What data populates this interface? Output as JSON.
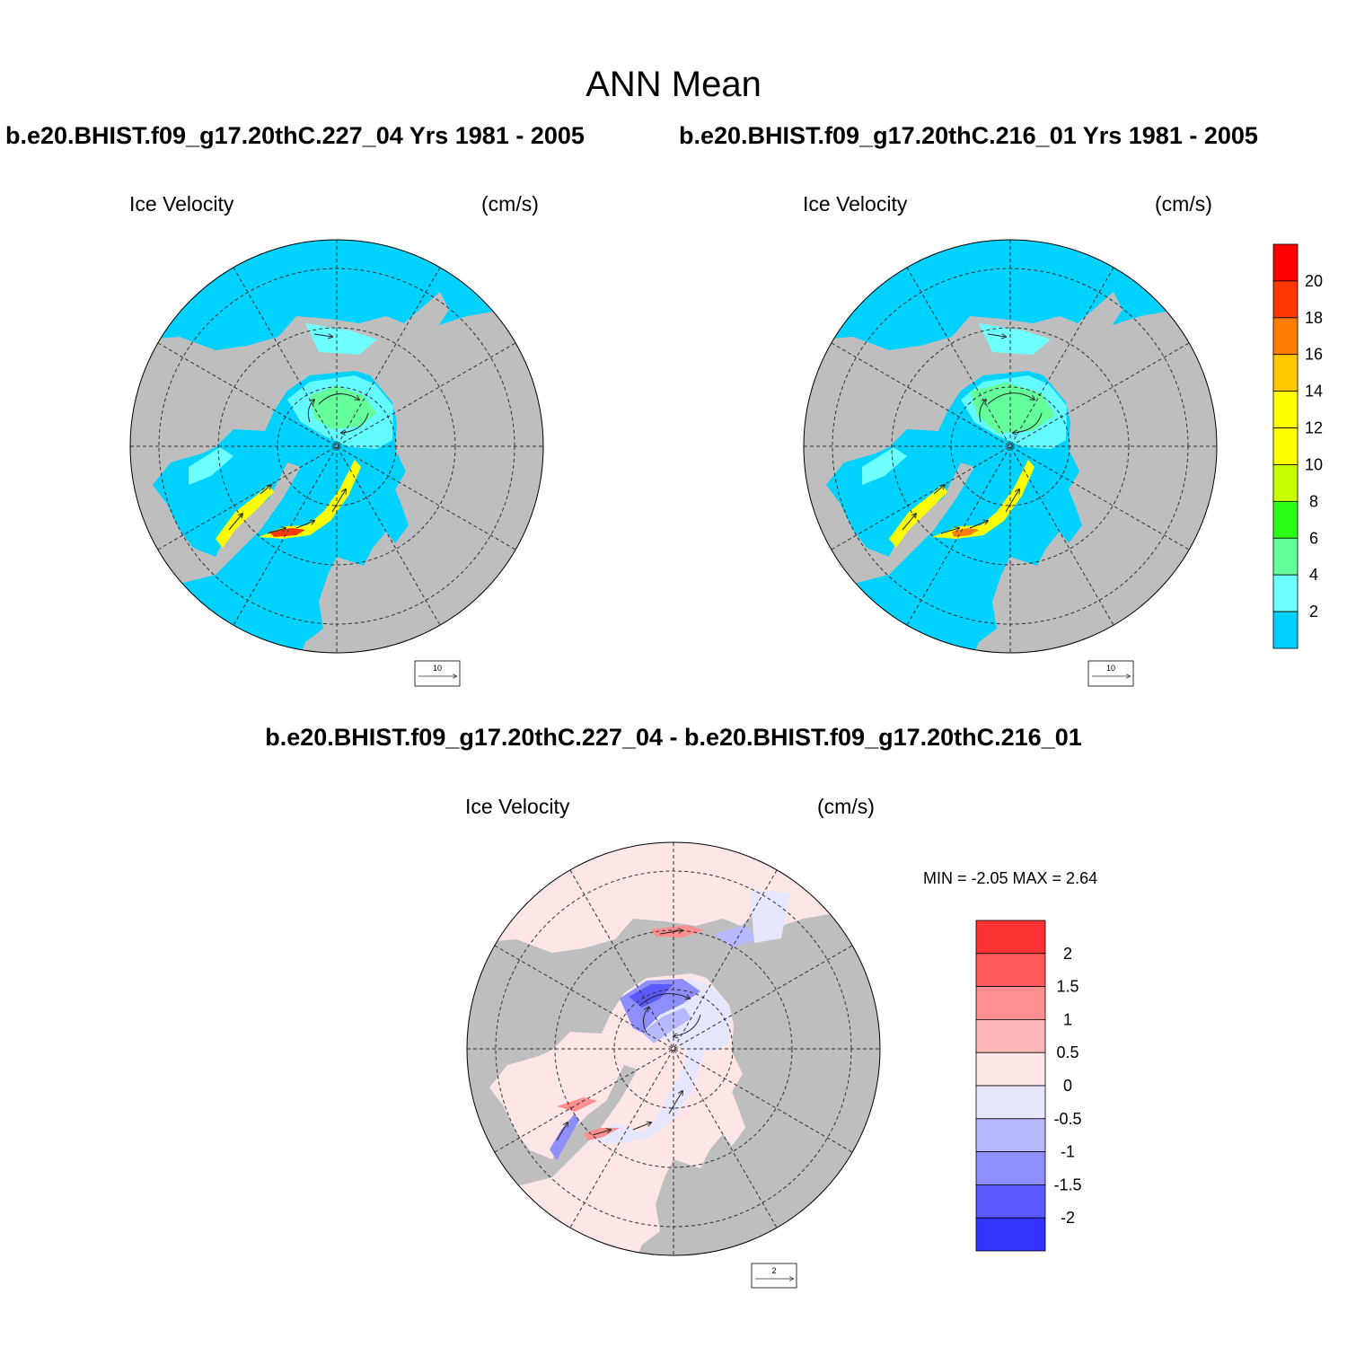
{
  "page": {
    "title": "ANN Mean"
  },
  "panels": [
    {
      "case_title": "b.e20.BHIST.f09_g17.20thC.227_04  Yrs 1981 - 2005",
      "variable": "Ice Velocity",
      "units": "(cm/s)",
      "ref_vector_label": "10"
    },
    {
      "case_title": "b.e20.BHIST.f09_g17.20thC.216_01  Yrs 1981 - 2005",
      "variable": "Ice Velocity",
      "units": "(cm/s)",
      "ref_vector_label": "10"
    },
    {
      "case_title": "b.e20.BHIST.f09_g17.20thC.227_04 - b.e20.BHIST.f09_g17.20thC.216_01",
      "variable": "Ice Velocity",
      "units": "(cm/s)",
      "ref_vector_label": "2",
      "minmax_text": "MIN =  -2.05 MAX =   2.64"
    }
  ],
  "colorbars": {
    "speed": {
      "labels": [
        "2",
        "4",
        "6",
        "8",
        "10",
        "12",
        "14",
        "16",
        "18",
        "20"
      ],
      "colors": [
        "#00d2ff",
        "#6effff",
        "#64ff9a",
        "#2aff16",
        "#c8ff00",
        "#ffff00",
        "#ffff00",
        "#ffc800",
        "#ff7d00",
        "#ff3700",
        "#ff0000"
      ]
    },
    "difference": {
      "labels": [
        "2",
        "1.5",
        "1",
        "0.5",
        "0",
        "-0.5",
        "-1",
        "-1.5",
        "-2"
      ],
      "colors": [
        "#ff3333",
        "#ff5a5a",
        "#ff8e8e",
        "#ffb8b8",
        "#ffe6e6",
        "#e6e6ff",
        "#b8b8ff",
        "#8e8eff",
        "#5a5aff",
        "#3333ff"
      ]
    }
  }
}
